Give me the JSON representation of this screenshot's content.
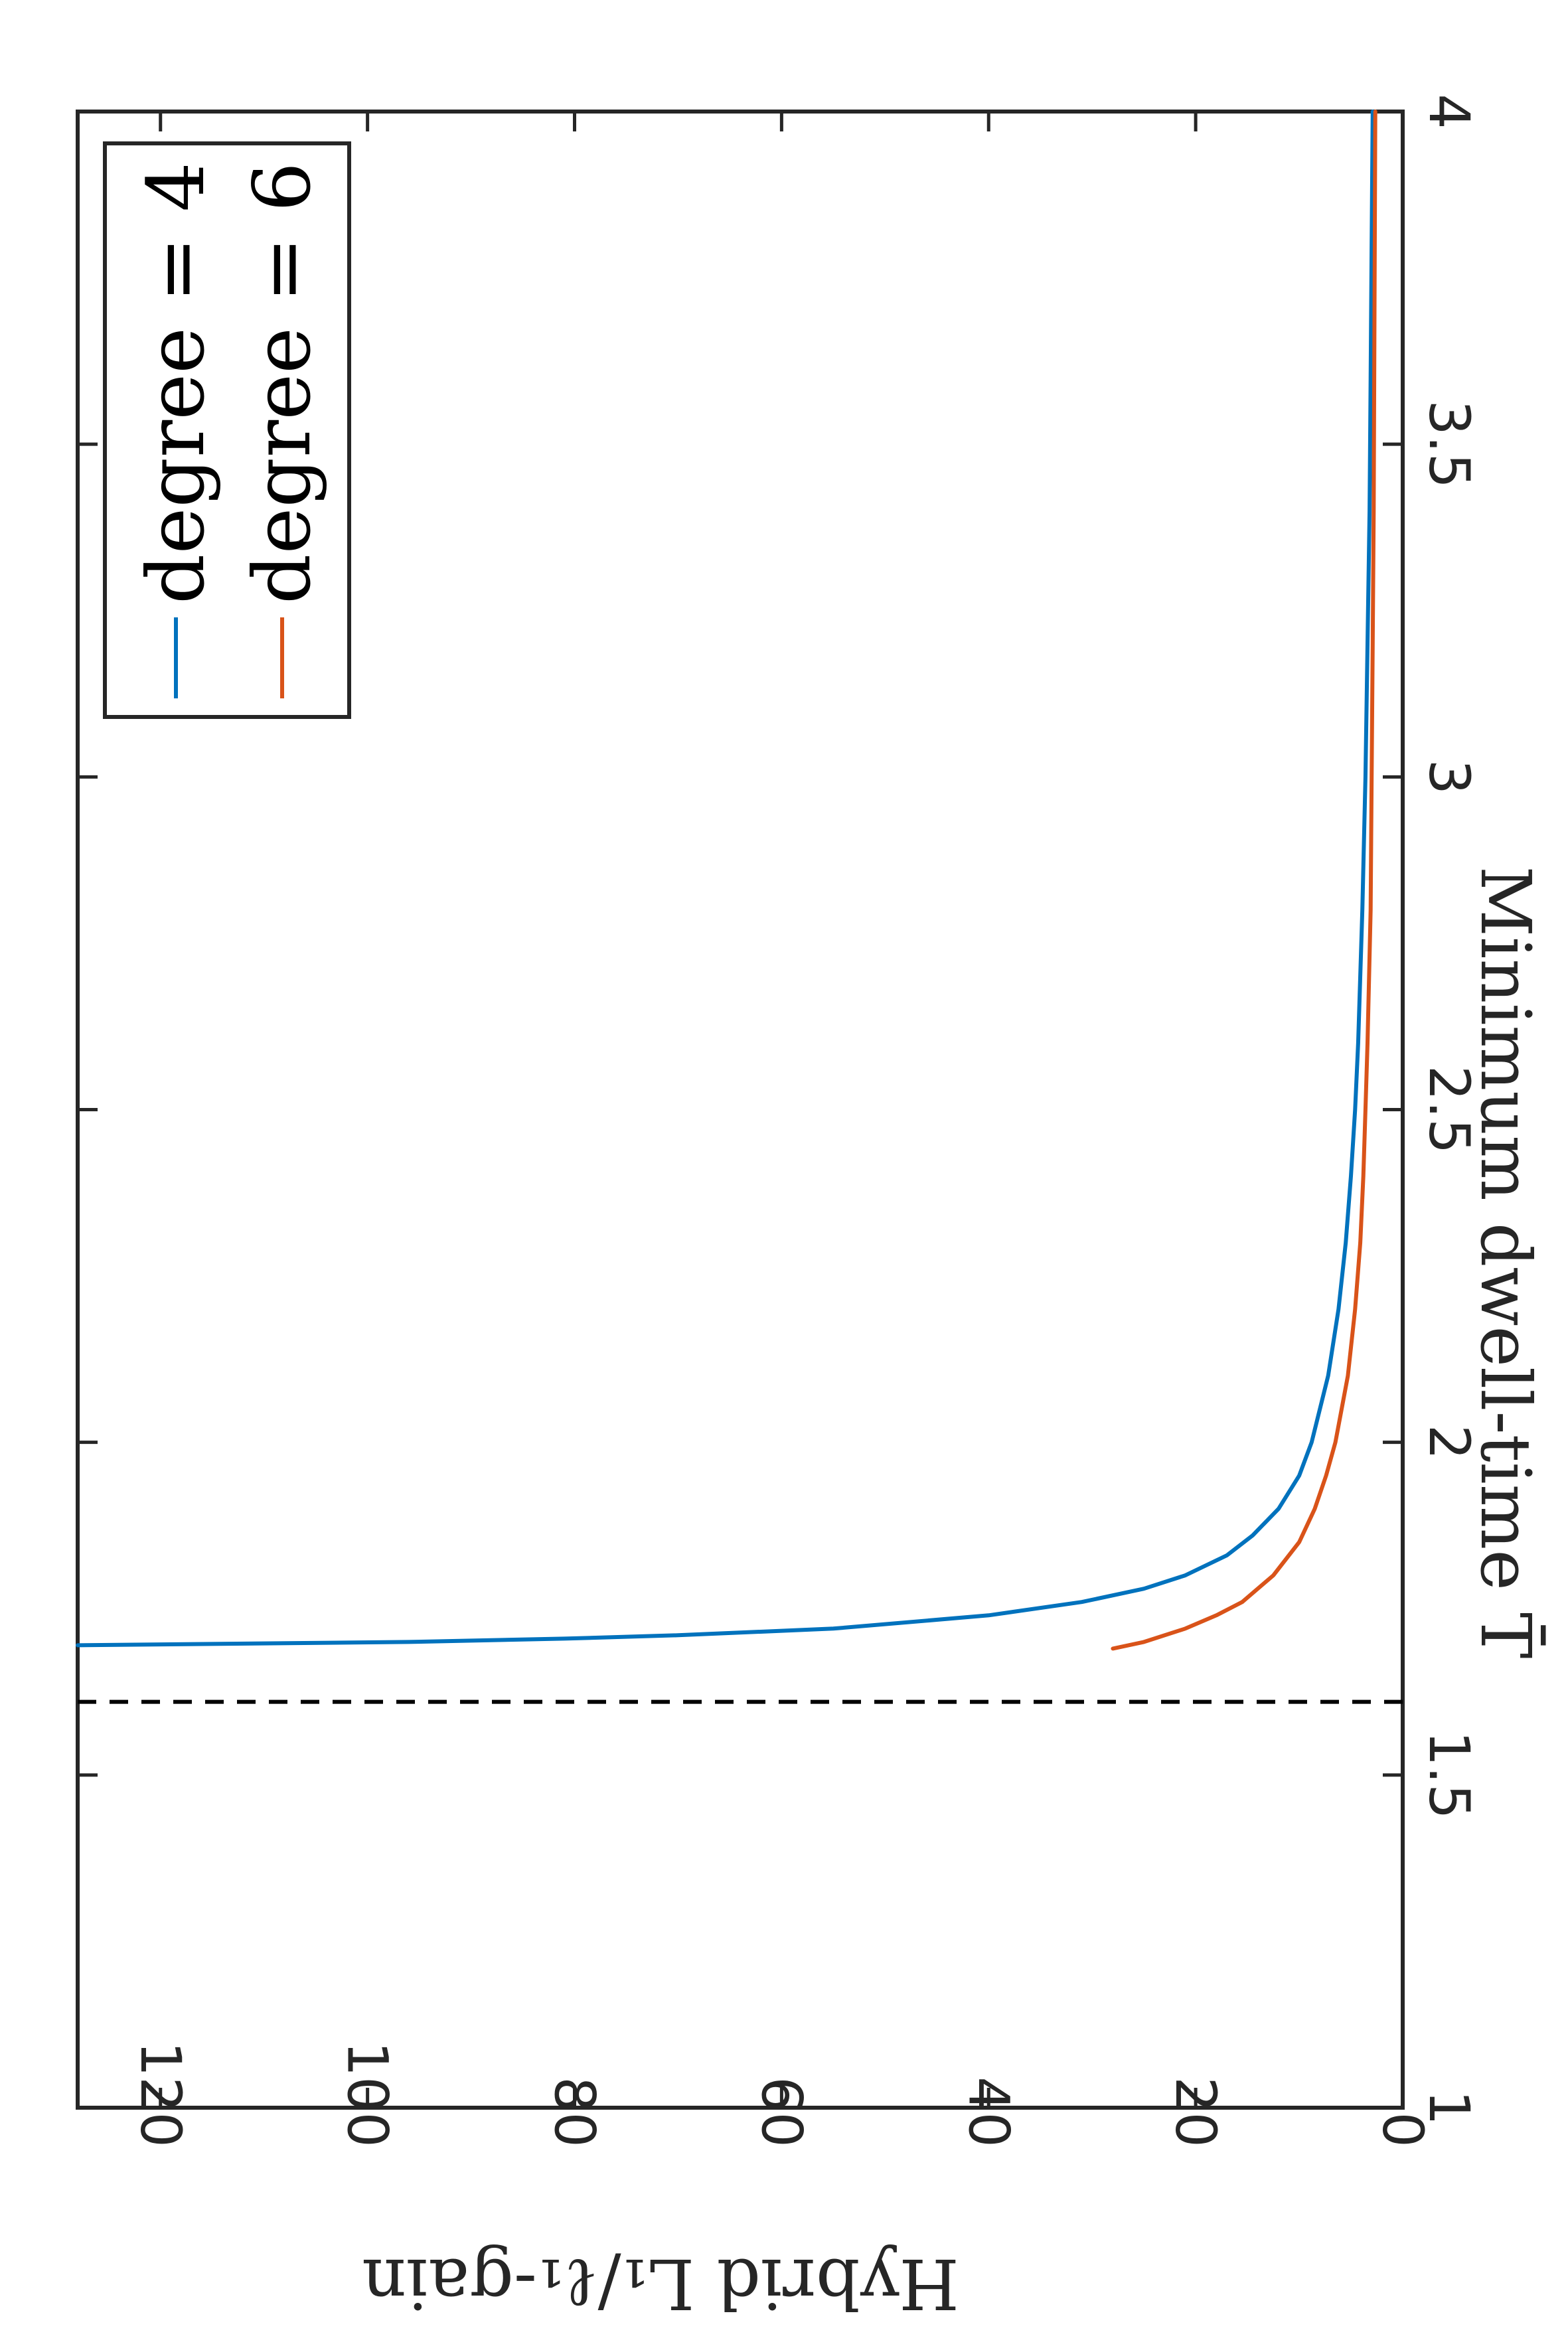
{
  "chart_data": {
    "type": "line",
    "orientation": "rotated-90-clockwise",
    "xlabel": "Minimum dwell-time T̄",
    "ylabel": "Hybrid L₁/ℓ₁-gain",
    "xlim": [
      1,
      4
    ],
    "ylim": [
      0,
      128
    ],
    "x_ticks": [
      1,
      1.5,
      2,
      2.5,
      3,
      3.5,
      4
    ],
    "x_tick_labels": [
      "1",
      "1.5",
      "2",
      "2.5",
      "3",
      "3.5",
      "4"
    ],
    "y_ticks": [
      0,
      20,
      40,
      60,
      80,
      100,
      120
    ],
    "y_tick_labels": [
      "0",
      "20",
      "40",
      "60",
      "80",
      "100",
      "120"
    ],
    "grid": false,
    "legend_position": "top-right",
    "series": [
      {
        "name": "degree = 4",
        "color": "#0072BD",
        "x": [
          1.695,
          1.7,
          1.705,
          1.71,
          1.72,
          1.74,
          1.76,
          1.78,
          1.8,
          1.83,
          1.86,
          1.9,
          1.95,
          2.0,
          2.1,
          2.2,
          2.3,
          2.4,
          2.5,
          2.6,
          2.8,
          3.0,
          3.2,
          3.4,
          3.6,
          3.8,
          4.0
        ],
        "values": [
          128,
          96,
          81,
          70,
          55,
          40,
          31,
          25,
          21,
          17,
          14.5,
          12,
          10,
          8.8,
          7.2,
          6.2,
          5.5,
          5.0,
          4.6,
          4.3,
          3.9,
          3.6,
          3.4,
          3.2,
          3.1,
          3.0,
          2.9
        ]
      },
      {
        "name": "degree = 6",
        "color": "#D95319",
        "x": [
          1.69,
          1.7,
          1.72,
          1.74,
          1.76,
          1.8,
          1.85,
          1.9,
          1.95,
          2.0,
          2.1,
          2.2,
          2.3,
          2.4,
          2.5,
          2.6,
          2.8,
          3.0,
          3.2,
          3.4,
          3.6,
          3.8,
          4.0
        ],
        "values": [
          28,
          25,
          21,
          18,
          15.5,
          12.5,
          10,
          8.5,
          7.4,
          6.5,
          5.3,
          4.6,
          4.1,
          3.8,
          3.6,
          3.4,
          3.1,
          3.0,
          2.9,
          2.8,
          2.75,
          2.7,
          2.65
        ]
      }
    ],
    "reference_lines": [
      {
        "orientation": "vertical",
        "x": 1.61,
        "style": "dashed",
        "color": "#000000"
      }
    ]
  }
}
